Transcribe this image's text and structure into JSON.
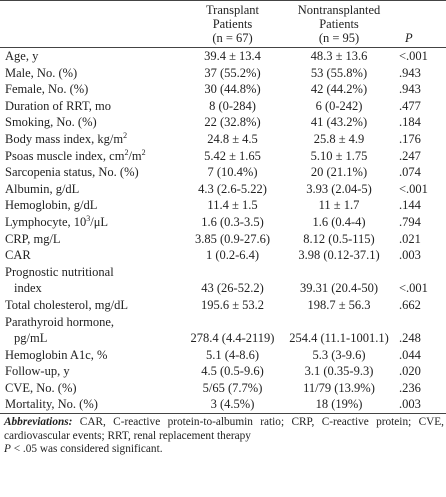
{
  "table": {
    "header": [
      [],
      [
        "Transplant",
        "Patients",
        "(n = 67)"
      ],
      [
        "Nontransplanted",
        "Patients",
        "(n = 95)"
      ],
      [
        "P"
      ]
    ],
    "rows": [
      {
        "label": [
          [
            {
              "text": "Age, y"
            }
          ]
        ],
        "cells": [
          "39.4 ± 13.4",
          "48.3 ± 13.6",
          "<.001"
        ]
      },
      {
        "label": [
          [
            {
              "text": "Male, No. (%)"
            }
          ]
        ],
        "cells": [
          "37 (55.2%)",
          "53 (55.8%)",
          ".943"
        ]
      },
      {
        "label": [
          [
            {
              "text": "Female, No. (%)"
            }
          ]
        ],
        "cells": [
          "30 (44.8%)",
          "42 (44.2%)",
          ".943"
        ]
      },
      {
        "label": [
          [
            {
              "text": "Duration of RRT, mo"
            }
          ]
        ],
        "cells": [
          "8 (0-284)",
          "6 (0-242)",
          ".477"
        ]
      },
      {
        "label": [
          [
            {
              "text": "Smoking, No. (%)"
            }
          ]
        ],
        "cells": [
          "22 (32.8%)",
          "41 (43.2%)",
          ".184"
        ]
      },
      {
        "label": [
          [
            {
              "text": "Body mass index, kg/m"
            },
            {
              "sup": "2"
            }
          ]
        ],
        "cells": [
          "24.8 ± 4.5",
          "25.8 ± 4.9",
          ".176"
        ]
      },
      {
        "label": [
          [
            {
              "text": "Psoas muscle index, cm"
            },
            {
              "sup": "2"
            },
            {
              "text": "/m"
            },
            {
              "sup": "2"
            }
          ]
        ],
        "cells": [
          "5.42 ± 1.65",
          "5.10 ± 1.75",
          ".247"
        ]
      },
      {
        "label": [
          [
            {
              "text": "Sarcopenia status, No. (%)"
            }
          ]
        ],
        "cells": [
          "7 (10.4%)",
          "20 (21.1%)",
          ".074"
        ]
      },
      {
        "label": [
          [
            {
              "text": "Albumin, g/dL"
            }
          ]
        ],
        "cells": [
          "4.3 (2.6-5.22)",
          "3.93 (2.04-5)",
          "<.001"
        ]
      },
      {
        "label": [
          [
            {
              "text": "Hemoglobin, g/dL"
            }
          ]
        ],
        "cells": [
          "11.4 ± 1.5",
          "11 ± 1.7",
          ".144"
        ]
      },
      {
        "label": [
          [
            {
              "text": "Lymphocyte, 10"
            },
            {
              "sup": "3"
            },
            {
              "text": "/μL"
            }
          ]
        ],
        "cells": [
          "1.6 (0.3-3.5)",
          "1.6 (0.4-4)",
          ".794"
        ]
      },
      {
        "label": [
          [
            {
              "text": "CRP, mg/L"
            }
          ]
        ],
        "cells": [
          "3.85 (0.9-27.6)",
          "8.12 (0.5-115)",
          ".021"
        ]
      },
      {
        "label": [
          [
            {
              "text": "CAR"
            }
          ]
        ],
        "cells": [
          "1 (0.2-6.4)",
          "3.98 (0.12-37.1)",
          ".003"
        ]
      },
      {
        "label": [
          [
            {
              "text": "Prognostic nutritional"
            }
          ],
          [
            {
              "text": "index"
            }
          ]
        ],
        "cells": [
          "43 (26-52.2)",
          "39.31 (20.4-50)",
          "<.001"
        ]
      },
      {
        "label": [
          [
            {
              "text": "Total cholesterol, mg/dL"
            }
          ]
        ],
        "cells": [
          "195.6 ± 53.2",
          "198.7 ± 56.3",
          ".662"
        ]
      },
      {
        "label": [
          [
            {
              "text": "Parathyroid hormone,"
            }
          ],
          [
            {
              "text": "pg/mL"
            }
          ]
        ],
        "cells": [
          "278.4 (4.4-2119)",
          "254.4 (11.1-1001.1)",
          ".248"
        ]
      },
      {
        "label": [
          [
            {
              "text": "Hemoglobin A1c, %"
            }
          ]
        ],
        "cells": [
          "5.1 (4-8.6)",
          "5.3 (3-9.6)",
          ".044"
        ]
      },
      {
        "label": [
          [
            {
              "text": "Follow-up, y"
            }
          ]
        ],
        "cells": [
          "4.5 (0.5-9.6)",
          "3.1 (0.35-9.3)",
          ".020"
        ]
      },
      {
        "label": [
          [
            {
              "text": "CVE, No. (%)"
            }
          ]
        ],
        "cells": [
          "5/65 (7.7%)",
          "11/79 (13.9%)",
          ".236"
        ]
      },
      {
        "label": [
          [
            {
              "text": "Mortality, No. (%)"
            }
          ]
        ],
        "cells": [
          "3 (4.5%)",
          "18 (19%)",
          ".003"
        ]
      }
    ]
  },
  "footnote": {
    "label": "Abbreviations:",
    "text": "CAR, C-reactive protein-to-albumin ratio; CRP, C-reactive protein; CVE, cardiovascular events; RRT, renal replacement therapy",
    "note_symbol": "P",
    "note": "< .05 was considered significant."
  }
}
